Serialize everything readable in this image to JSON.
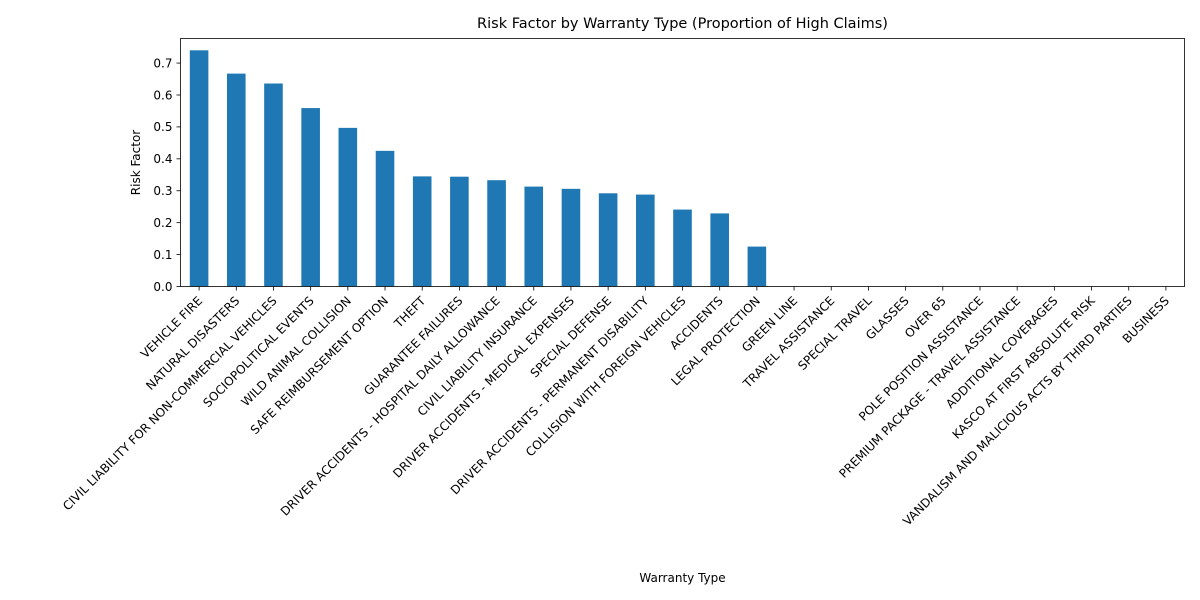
{
  "chart_data": {
    "type": "bar",
    "title": "Risk Factor by Warranty Type (Proportion of High Claims)",
    "xlabel": "Warranty Type",
    "ylabel": "Risk Factor",
    "ylim": [
      0,
      0.777
    ],
    "yticks": [
      "0.0",
      "0.1",
      "0.2",
      "0.3",
      "0.4",
      "0.5",
      "0.6",
      "0.7"
    ],
    "grid": false,
    "bar_color": "#1f77b4",
    "categories": [
      "VEHICLE FIRE",
      "NATURAL DISASTERS",
      "CIVIL LIABILITY FOR NON-COMMERCIAL VEHICLES",
      "SOCIOPOLITICAL EVENTS",
      "WILD ANIMAL COLLISION",
      "SAFE REIMBURSEMENT OPTION",
      "THEFT",
      "GUARANTEE FAILURES",
      "DRIVER ACCIDENTS - HOSPITAL DAILY ALLOWANCE",
      "CIVIL LIABILITY INSURANCE",
      "DRIVER ACCIDENTS - MEDICAL EXPENSES",
      "SPECIAL DEFENSE",
      "DRIVER ACCIDENTS - PERMANENT DISABILITY",
      "COLLISION WITH FOREIGN VEHICLES",
      "ACCIDENTS",
      "LEGAL PROTECTION",
      "GREEN LINE",
      "TRAVEL ASSISTANCE",
      "SPECIAL TRAVEL",
      "GLASSES",
      "OVER 65",
      "POLE POSITION ASSISTANCE",
      "PREMIUM PACKAGE - TRAVEL ASSISTANCE",
      "ADDITIONAL COVERAGES",
      "KASCO AT FIRST ABSOLUTE RISK",
      "VANDALISM AND MALICIOUS ACTS BY THIRD PARTIES",
      "BUSINESS"
    ],
    "values": [
      0.74,
      0.667,
      0.636,
      0.559,
      0.497,
      0.425,
      0.345,
      0.344,
      0.333,
      0.313,
      0.306,
      0.292,
      0.288,
      0.241,
      0.229,
      0.125,
      0,
      0,
      0,
      0,
      0,
      0,
      0,
      0,
      0,
      0,
      0
    ]
  }
}
